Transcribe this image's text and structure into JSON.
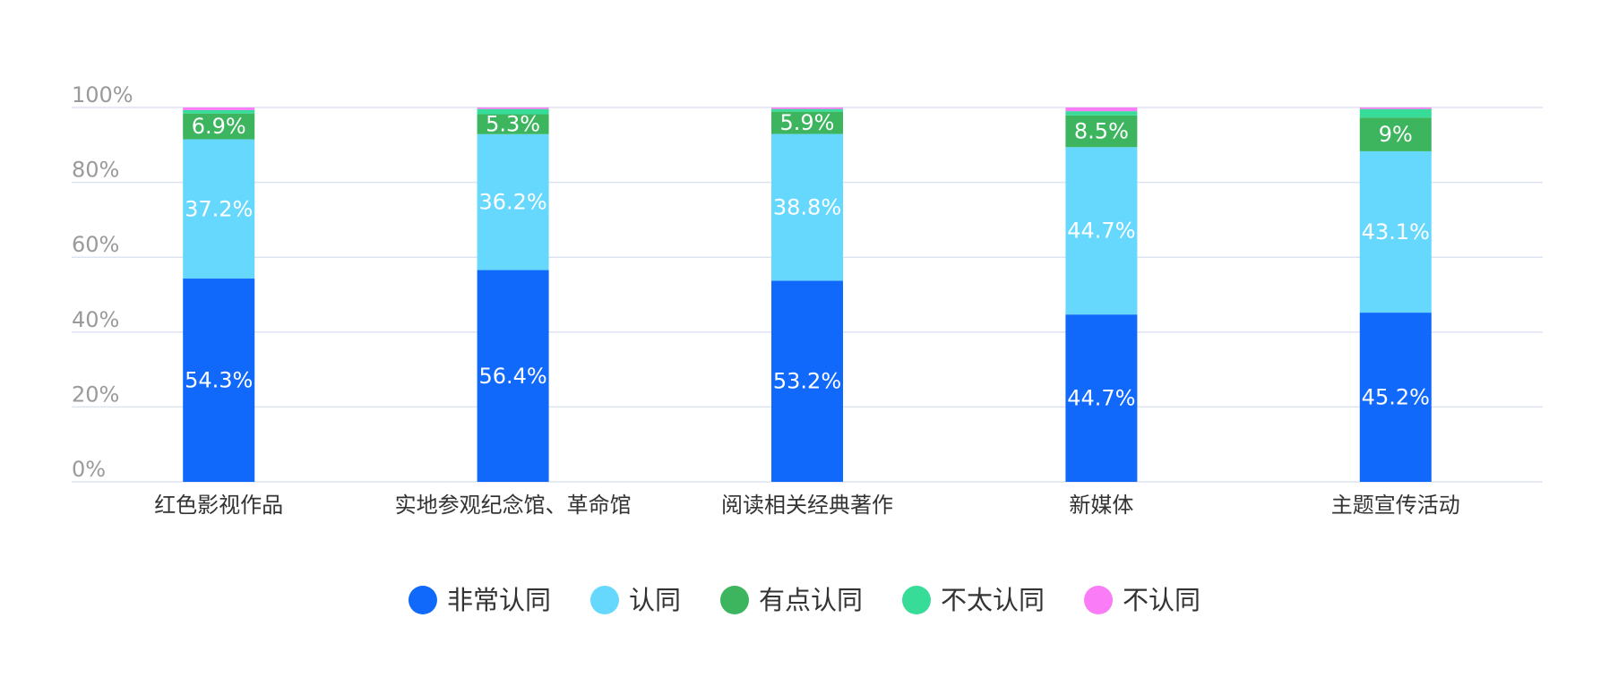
{
  "chart_data": {
    "type": "bar",
    "stacked": true,
    "normalized": true,
    "categories": [
      "红色影视作品",
      "实地参观纪念馆、革命馆",
      "阅读相关经典著作",
      "新媒体",
      "主题宣传活动"
    ],
    "series": [
      {
        "name": "非常认同",
        "color": "#1169fc",
        "values": [
          54.3,
          56.4,
          53.2,
          44.7,
          45.2
        ],
        "labels": [
          "54.3%",
          "56.4%",
          "53.2%",
          "44.7%",
          "45.2%"
        ]
      },
      {
        "name": "认同",
        "color": "#66d8fe",
        "values": [
          37.2,
          36.2,
          38.8,
          44.7,
          43.1
        ],
        "labels": [
          "37.2%",
          "36.2%",
          "38.8%",
          "44.7%",
          "43.1%"
        ]
      },
      {
        "name": "有点认同",
        "color": "#3cb55e",
        "values": [
          6.9,
          5.3,
          5.9,
          8.5,
          9.0
        ],
        "labels": [
          "6.9%",
          "5.3%",
          "5.9%",
          "8.5%",
          "9%"
        ]
      },
      {
        "name": "不太认同",
        "color": "#36dc97",
        "values": [
          0.9,
          1.4,
          0.7,
          1.1,
          2.3
        ],
        "labels": [
          "",
          "",
          "",
          "",
          ""
        ]
      },
      {
        "name": "不认同",
        "color": "#fa7cf6",
        "values": [
          0.7,
          0.4,
          0.4,
          1.0,
          0.4
        ],
        "labels": [
          "",
          "",
          "",
          "",
          ""
        ]
      }
    ],
    "ylim": [
      0,
      100
    ],
    "yticks": [
      "0%",
      "20%",
      "40%",
      "60%",
      "80%",
      "100%"
    ],
    "grid": true,
    "legend_position": "bottom",
    "title": "",
    "xlabel": "",
    "ylabel": ""
  }
}
